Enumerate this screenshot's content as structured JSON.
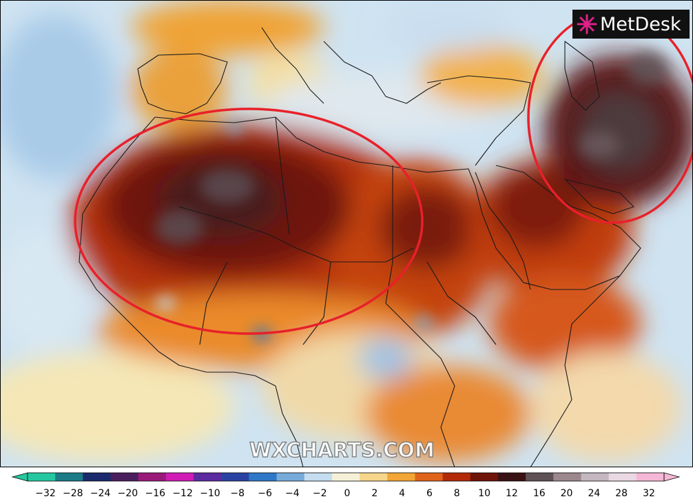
{
  "watermark": "WXCHARTS.COM",
  "brand": {
    "label": "MetDesk",
    "icon": "metdesk-star-icon"
  },
  "colorbar": {
    "ticks": [
      "−32",
      "−28",
      "−24",
      "−20",
      "−16",
      "−12",
      "−10",
      "−8",
      "−6",
      "−4",
      "−2",
      "0",
      "2",
      "4",
      "6",
      "8",
      "10",
      "12",
      "16",
      "20",
      "24",
      "28",
      "32"
    ],
    "colors": [
      "#25c7a0",
      "#1b7c87",
      "#1a2a6c",
      "#4b1f5e",
      "#9a1a7a",
      "#d01cb4",
      "#5b2ba0",
      "#2a43a3",
      "#2f78c8",
      "#77abd9",
      "#c5ddf0",
      "#f4f1d8",
      "#f6d68a",
      "#f2a637",
      "#e0641c",
      "#b32a09",
      "#6e1409",
      "#3a1114",
      "#5e5256",
      "#9b878c",
      "#c4b7c0",
      "#ead9e3",
      "#f4b8d6"
    ]
  },
  "annotations": [
    {
      "name": "north-africa-heat-circle",
      "color": "#e8202a"
    },
    {
      "name": "middle-east-heat-circle",
      "color": "#e8202a"
    }
  ]
}
